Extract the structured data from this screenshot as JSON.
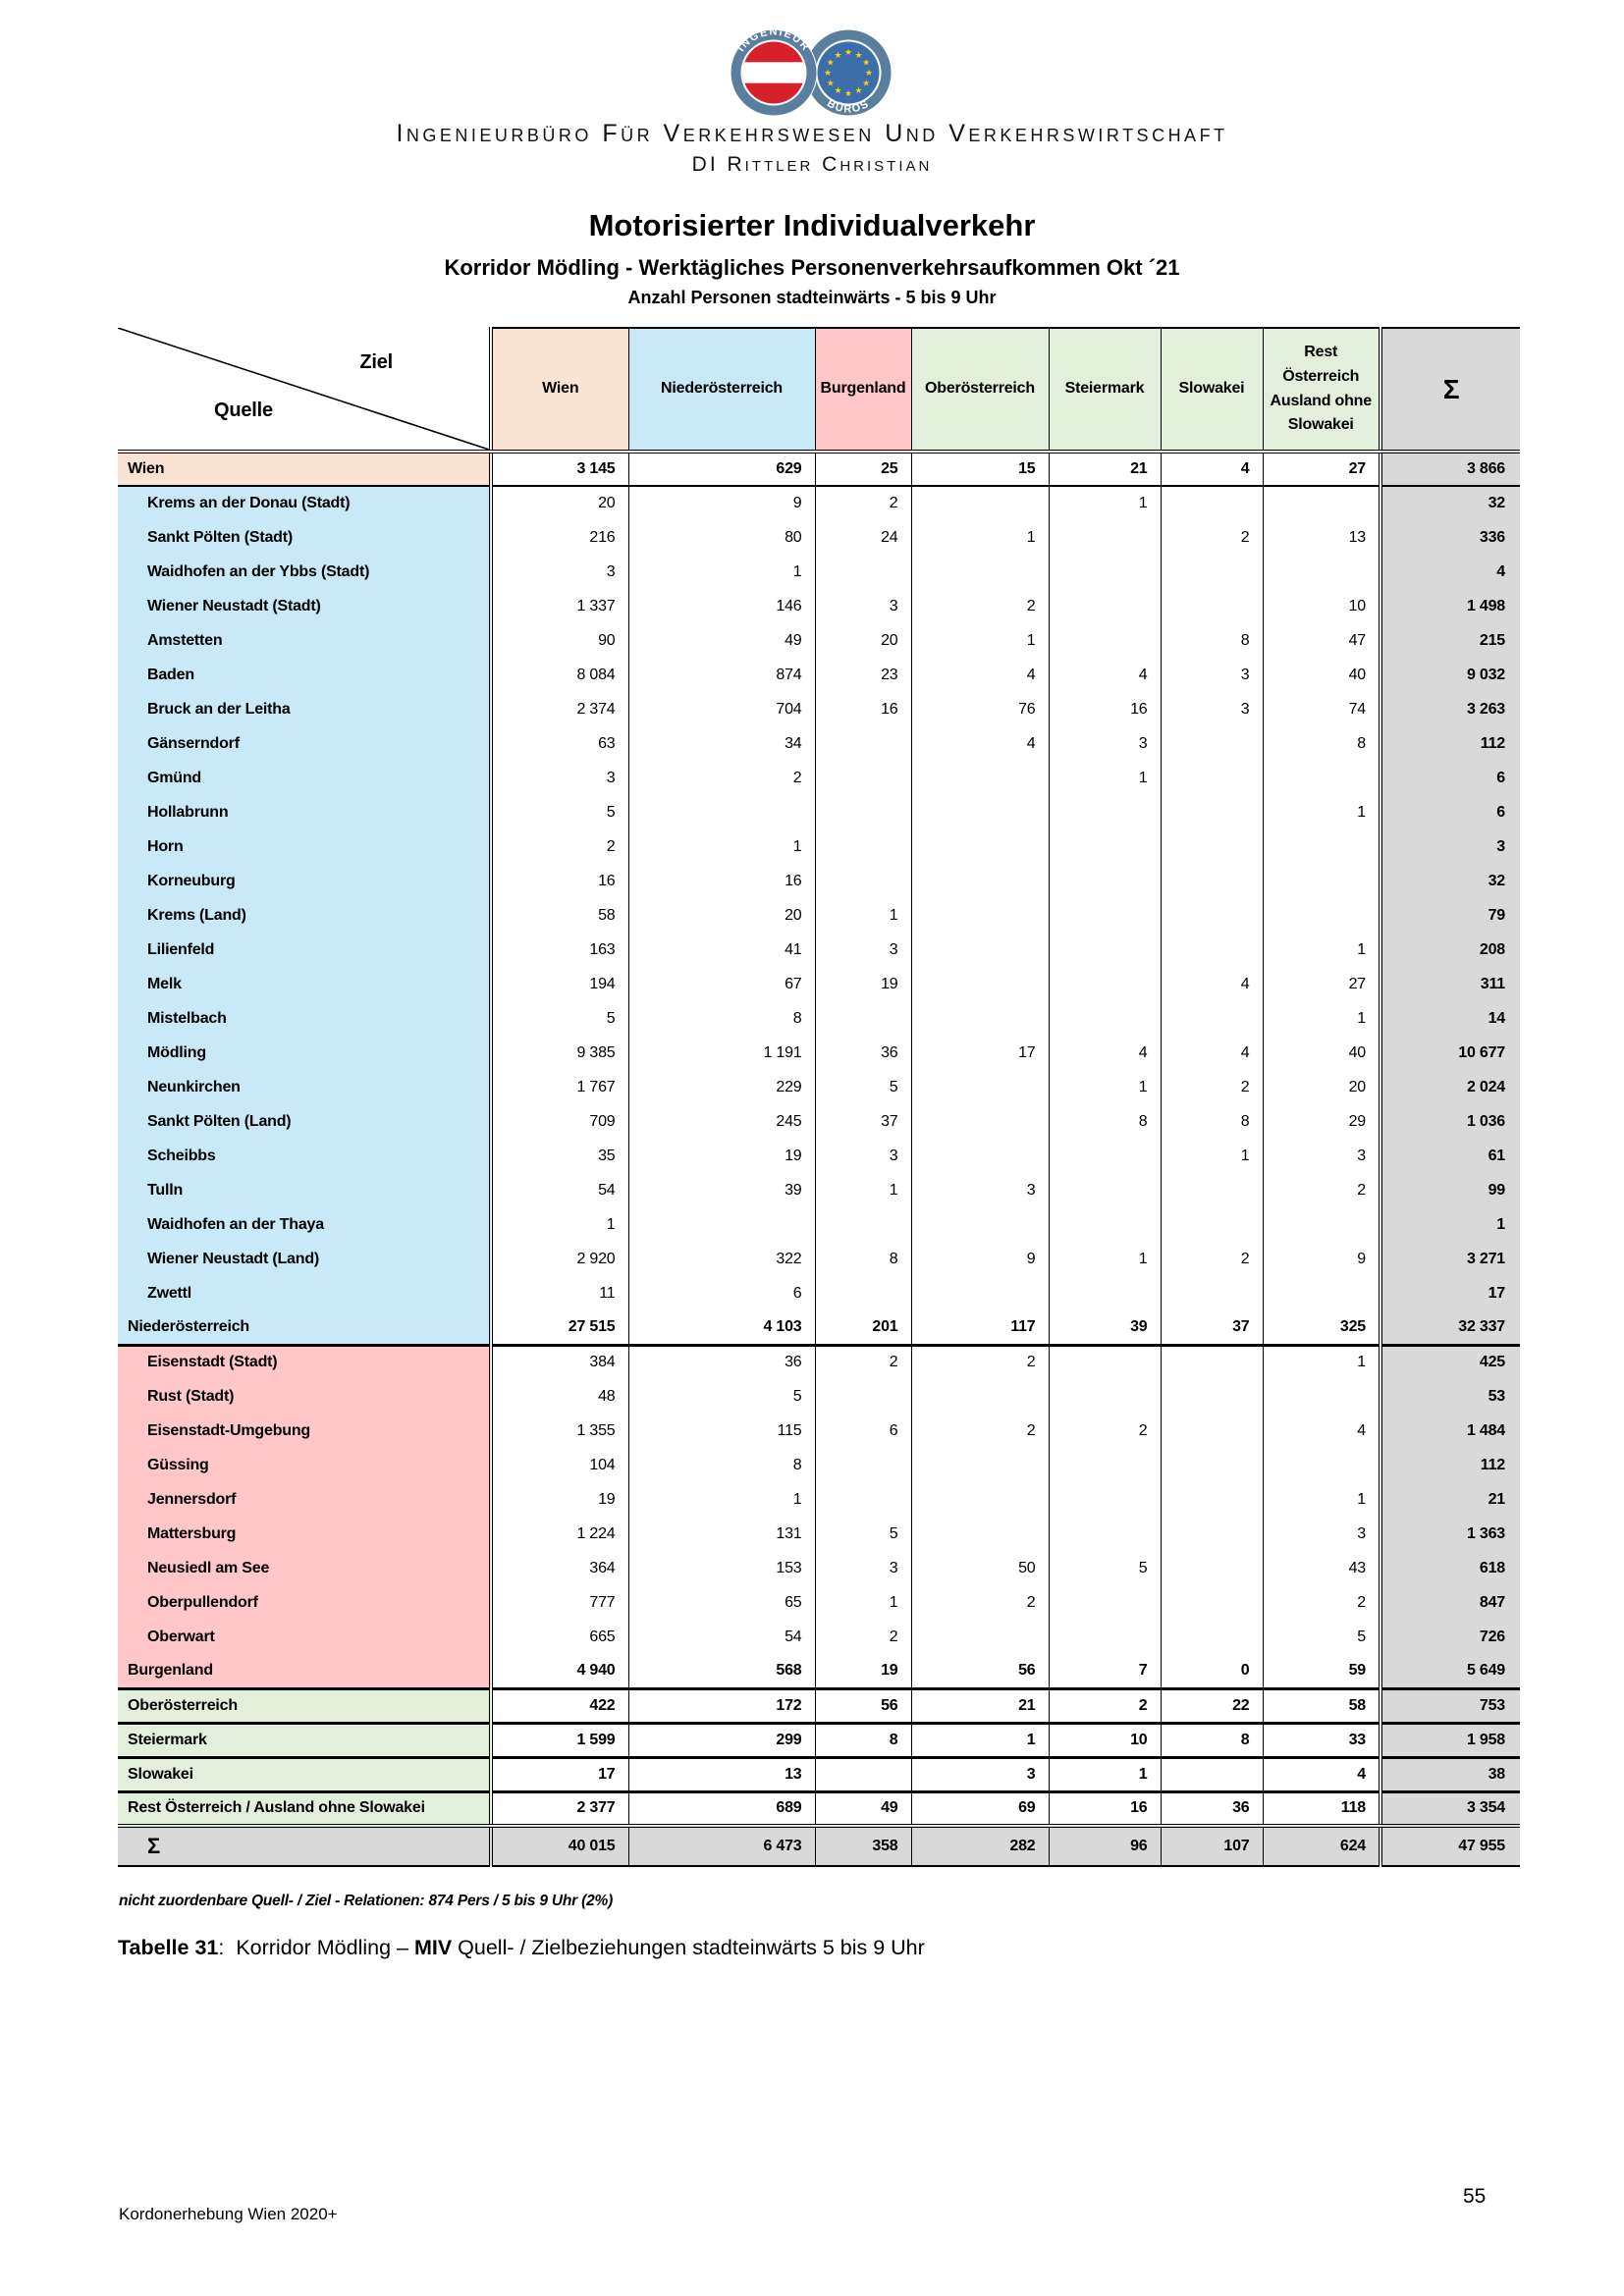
{
  "header": {
    "logo": {
      "left_arc_text": "INGENIEUR",
      "right_arc_text": "BÜROS"
    },
    "company_line1": "Ingenieurbüro Für Verkehrswesen Und Verkehrswirtschaft",
    "company_line2": "DI Rittler Christian"
  },
  "titles": {
    "main": "Motorisierter Individualverkehr",
    "sub1": "Korridor Mödling - Werktägliches Personenverkehrsaufkommen Okt ´21",
    "sub2": "Anzahl Personen stadteinwärts - 5 bis 9 Uhr"
  },
  "colors": {
    "wien": "#fbe3d4",
    "niederoesterreich": "#c9e8f8",
    "burgenland": "#ffc7c7",
    "green": "#e2efda",
    "gray": "#d9d9d9"
  },
  "table": {
    "corner": {
      "top_right": "Ziel",
      "bottom_left": "Quelle"
    },
    "columns": [
      {
        "label": "Wien",
        "color": "#fbe3d4"
      },
      {
        "label": "Niederösterreich",
        "color": "#c9e8f8"
      },
      {
        "label": "Burgenland",
        "color": "#ffc7c7"
      },
      {
        "label": "Oberösterreich",
        "color": "#e2efda"
      },
      {
        "label": "Steiermark",
        "color": "#e2efda"
      },
      {
        "label": "Slowakei",
        "color": "#e2efda"
      },
      {
        "label": "Rest Österreich\nAusland ohne\nSlowakei",
        "color": "#e2efda"
      },
      {
        "label": "Σ",
        "color": "#d9d9d9",
        "big": true
      }
    ],
    "rows": [
      {
        "label": "Wien",
        "bg": "#fbe3d4",
        "bold": true,
        "ind": false,
        "bb": "bb2",
        "values": [
          "3 145",
          "629",
          "25",
          "15",
          "21",
          "4",
          "27"
        ],
        "sum": "3 866"
      },
      {
        "label": "Krems an der Donau (Stadt)",
        "bg": "#c9e8f8",
        "ind": true,
        "values": [
          "20",
          "9",
          "2",
          "",
          "1",
          "",
          ""
        ],
        "sum": "32"
      },
      {
        "label": "Sankt Pölten (Stadt)",
        "bg": "#c9e8f8",
        "ind": true,
        "values": [
          "216",
          "80",
          "24",
          "1",
          "",
          "2",
          "13"
        ],
        "sum": "336"
      },
      {
        "label": "Waidhofen an der Ybbs (Stadt)",
        "bg": "#c9e8f8",
        "ind": true,
        "values": [
          "3",
          "1",
          "",
          "",
          "",
          "",
          ""
        ],
        "sum": "4"
      },
      {
        "label": "Wiener Neustadt (Stadt)",
        "bg": "#c9e8f8",
        "ind": true,
        "values": [
          "1 337",
          "146",
          "3",
          "2",
          "",
          "",
          "10"
        ],
        "sum": "1 498"
      },
      {
        "label": "Amstetten",
        "bg": "#c9e8f8",
        "ind": true,
        "values": [
          "90",
          "49",
          "20",
          "1",
          "",
          "8",
          "47"
        ],
        "sum": "215"
      },
      {
        "label": "Baden",
        "bg": "#c9e8f8",
        "ind": true,
        "values": [
          "8 084",
          "874",
          "23",
          "4",
          "4",
          "3",
          "40"
        ],
        "sum": "9 032"
      },
      {
        "label": "Bruck an der Leitha",
        "bg": "#c9e8f8",
        "ind": true,
        "values": [
          "2 374",
          "704",
          "16",
          "76",
          "16",
          "3",
          "74"
        ],
        "sum": "3 263"
      },
      {
        "label": "Gänserndorf",
        "bg": "#c9e8f8",
        "ind": true,
        "values": [
          "63",
          "34",
          "",
          "4",
          "3",
          "",
          "8"
        ],
        "sum": "112"
      },
      {
        "label": "Gmünd",
        "bg": "#c9e8f8",
        "ind": true,
        "values": [
          "3",
          "2",
          "",
          "",
          "1",
          "",
          ""
        ],
        "sum": "6"
      },
      {
        "label": "Hollabrunn",
        "bg": "#c9e8f8",
        "ind": true,
        "values": [
          "5",
          "",
          "",
          "",
          "",
          "",
          "1"
        ],
        "sum": "6"
      },
      {
        "label": "Horn",
        "bg": "#c9e8f8",
        "ind": true,
        "values": [
          "2",
          "1",
          "",
          "",
          "",
          "",
          ""
        ],
        "sum": "3"
      },
      {
        "label": "Korneuburg",
        "bg": "#c9e8f8",
        "ind": true,
        "values": [
          "16",
          "16",
          "",
          "",
          "",
          "",
          ""
        ],
        "sum": "32"
      },
      {
        "label": "Krems (Land)",
        "bg": "#c9e8f8",
        "ind": true,
        "values": [
          "58",
          "20",
          "1",
          "",
          "",
          "",
          ""
        ],
        "sum": "79"
      },
      {
        "label": "Lilienfeld",
        "bg": "#c9e8f8",
        "ind": true,
        "values": [
          "163",
          "41",
          "3",
          "",
          "",
          "",
          "1"
        ],
        "sum": "208"
      },
      {
        "label": "Melk",
        "bg": "#c9e8f8",
        "ind": true,
        "values": [
          "194",
          "67",
          "19",
          "",
          "",
          "4",
          "27"
        ],
        "sum": "311"
      },
      {
        "label": "Mistelbach",
        "bg": "#c9e8f8",
        "ind": true,
        "values": [
          "5",
          "8",
          "",
          "",
          "",
          "",
          "1"
        ],
        "sum": "14"
      },
      {
        "label": "Mödling",
        "bg": "#c9e8f8",
        "ind": true,
        "values": [
          "9 385",
          "1 191",
          "36",
          "17",
          "4",
          "4",
          "40"
        ],
        "sum": "10 677"
      },
      {
        "label": "Neunkirchen",
        "bg": "#c9e8f8",
        "ind": true,
        "values": [
          "1 767",
          "229",
          "5",
          "",
          "1",
          "2",
          "20"
        ],
        "sum": "2 024"
      },
      {
        "label": "Sankt Pölten (Land)",
        "bg": "#c9e8f8",
        "ind": true,
        "values": [
          "709",
          "245",
          "37",
          "",
          "8",
          "8",
          "29"
        ],
        "sum": "1 036"
      },
      {
        "label": "Scheibbs",
        "bg": "#c9e8f8",
        "ind": true,
        "values": [
          "35",
          "19",
          "3",
          "",
          "",
          "1",
          "3"
        ],
        "sum": "61"
      },
      {
        "label": "Tulln",
        "bg": "#c9e8f8",
        "ind": true,
        "values": [
          "54",
          "39",
          "1",
          "3",
          "",
          "",
          "2"
        ],
        "sum": "99"
      },
      {
        "label": "Waidhofen an der Thaya",
        "bg": "#c9e8f8",
        "ind": true,
        "values": [
          "1",
          "",
          "",
          "",
          "",
          "",
          ""
        ],
        "sum": "1"
      },
      {
        "label": "Wiener Neustadt (Land)",
        "bg": "#c9e8f8",
        "ind": true,
        "values": [
          "2 920",
          "322",
          "8",
          "9",
          "1",
          "2",
          "9"
        ],
        "sum": "3 271"
      },
      {
        "label": "Zwettl",
        "bg": "#c9e8f8",
        "ind": true,
        "values": [
          "11",
          "6",
          "",
          "",
          "",
          "",
          ""
        ],
        "sum": "17"
      },
      {
        "label": "Niederösterreich",
        "bg": "#c9e8f8",
        "bold": true,
        "ind": false,
        "bb": "bb3",
        "values": [
          "27 515",
          "4 103",
          "201",
          "117",
          "39",
          "37",
          "325"
        ],
        "sum": "32 337"
      },
      {
        "label": "Eisenstadt (Stadt)",
        "bg": "#ffc7c7",
        "ind": true,
        "values": [
          "384",
          "36",
          "2",
          "2",
          "",
          "",
          "1"
        ],
        "sum": "425"
      },
      {
        "label": "Rust (Stadt)",
        "bg": "#ffc7c7",
        "ind": true,
        "values": [
          "48",
          "5",
          "",
          "",
          "",
          "",
          ""
        ],
        "sum": "53"
      },
      {
        "label": "Eisenstadt-Umgebung",
        "bg": "#ffc7c7",
        "ind": true,
        "values": [
          "1 355",
          "115",
          "6",
          "2",
          "2",
          "",
          "4"
        ],
        "sum": "1 484"
      },
      {
        "label": "Güssing",
        "bg": "#ffc7c7",
        "ind": true,
        "values": [
          "104",
          "8",
          "",
          "",
          "",
          "",
          ""
        ],
        "sum": "112"
      },
      {
        "label": "Jennersdorf",
        "bg": "#ffc7c7",
        "ind": true,
        "values": [
          "19",
          "1",
          "",
          "",
          "",
          "",
          "1"
        ],
        "sum": "21"
      },
      {
        "label": "Mattersburg",
        "bg": "#ffc7c7",
        "ind": true,
        "values": [
          "1 224",
          "131",
          "5",
          "",
          "",
          "",
          "3"
        ],
        "sum": "1 363"
      },
      {
        "label": "Neusiedl am See",
        "bg": "#ffc7c7",
        "ind": true,
        "values": [
          "364",
          "153",
          "3",
          "50",
          "5",
          "",
          "43"
        ],
        "sum": "618"
      },
      {
        "label": "Oberpullendorf",
        "bg": "#ffc7c7",
        "ind": true,
        "values": [
          "777",
          "65",
          "1",
          "2",
          "",
          "",
          "2"
        ],
        "sum": "847"
      },
      {
        "label": "Oberwart",
        "bg": "#ffc7c7",
        "ind": true,
        "values": [
          "665",
          "54",
          "2",
          "",
          "",
          "",
          "5"
        ],
        "sum": "726"
      },
      {
        "label": "Burgenland",
        "bg": "#ffc7c7",
        "bold": true,
        "ind": false,
        "bb": "bb3",
        "values": [
          "4 940",
          "568",
          "19",
          "56",
          "7",
          "0",
          "59"
        ],
        "sum": "5 649"
      },
      {
        "label": "Oberösterreich",
        "bg": "#e2efda",
        "bold": true,
        "ind": false,
        "bb": "bb3",
        "values": [
          "422",
          "172",
          "56",
          "21",
          "2",
          "22",
          "58"
        ],
        "sum": "753"
      },
      {
        "label": "Steiermark",
        "bg": "#e2efda",
        "bold": true,
        "ind": false,
        "bb": "bb3",
        "values": [
          "1 599",
          "299",
          "8",
          "1",
          "10",
          "8",
          "33"
        ],
        "sum": "1 958"
      },
      {
        "label": "Slowakei",
        "bg": "#e2efda",
        "bold": true,
        "ind": false,
        "bb": "bb3",
        "values": [
          "17",
          "13",
          "",
          "3",
          "1",
          "",
          "4"
        ],
        "sum": "38"
      },
      {
        "label": "Rest Österreich / Ausland ohne Slowakei",
        "bg": "#e2efda",
        "bold": true,
        "ind": false,
        "bb": "bbd",
        "values": [
          "2 377",
          "689",
          "49",
          "69",
          "16",
          "36",
          "118"
        ],
        "sum": "3 354"
      },
      {
        "label": "Σ",
        "bg": "#d9d9d9",
        "rowbg": "#d9d9d9",
        "bold": true,
        "ind": false,
        "bb": "bb2",
        "cls": "sum-row",
        "values": [
          "40 015",
          "6 473",
          "358",
          "282",
          "96",
          "107",
          "624"
        ],
        "sum": "47 955"
      }
    ]
  },
  "note": "nicht zuordenbare Quell- / Ziel - Relationen: 874 Pers / 5 bis 9 Uhr (2%)",
  "caption": {
    "label": "Tabelle 31",
    "sep": ":  ",
    "pre": "Korridor Mödling – ",
    "bold_word": "MIV",
    "post": " Quell- / Zielbeziehungen stadteinwärts 5 bis 9 Uhr"
  },
  "footer": {
    "left": "Kordonerhebung Wien 2020+",
    "page": "55"
  }
}
